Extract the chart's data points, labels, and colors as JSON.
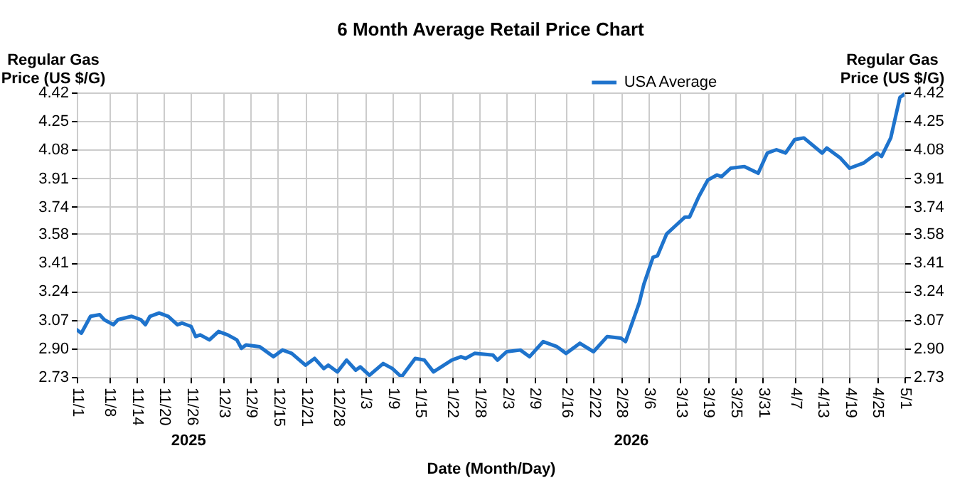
{
  "chart_data": {
    "type": "line",
    "title": "6 Month Average Retail Price Chart",
    "xlabel": "Date (Month/Day)",
    "ylabel": "Regular Gas Price (US $/G)",
    "y2label": "Regular Gas Price (US $/G)",
    "annotations": [
      "2025",
      "2026"
    ],
    "x": [
      "2025-11-01",
      "2025-11-02",
      "2025-11-04",
      "2025-11-06",
      "2025-11-07",
      "2025-11-09",
      "2025-11-10",
      "2025-11-13",
      "2025-11-15",
      "2025-11-16",
      "2025-11-17",
      "2025-11-19",
      "2025-11-21",
      "2025-11-23",
      "2025-11-24",
      "2025-11-26",
      "2025-11-27",
      "2025-11-28",
      "2025-11-30",
      "2025-12-02",
      "2025-12-04",
      "2025-12-06",
      "2025-12-07",
      "2025-12-08",
      "2025-12-11",
      "2025-12-12",
      "2025-12-14",
      "2025-12-16",
      "2025-12-18",
      "2025-12-21",
      "2025-12-23",
      "2025-12-25",
      "2025-12-26",
      "2025-12-28",
      "2025-12-30",
      "2026-01-01",
      "2026-01-02",
      "2026-01-04",
      "2026-01-07",
      "2026-01-09",
      "2026-01-11",
      "2026-01-14",
      "2026-01-16",
      "2026-01-18",
      "2026-01-22",
      "2026-01-24",
      "2026-01-25",
      "2026-01-27",
      "2026-01-31",
      "2026-02-01",
      "2026-02-03",
      "2026-02-06",
      "2026-02-08",
      "2026-02-11",
      "2026-02-14",
      "2026-02-16",
      "2026-02-19",
      "2026-02-22",
      "2026-02-25",
      "2026-02-28",
      "2026-03-01",
      "2026-03-04",
      "2026-03-05",
      "2026-03-07",
      "2026-03-08",
      "2026-03-10",
      "2026-03-12",
      "2026-03-14",
      "2026-03-15",
      "2026-03-17",
      "2026-03-19",
      "2026-03-21",
      "2026-03-22",
      "2026-03-24",
      "2026-03-27",
      "2026-03-30",
      "2026-04-01",
      "2026-04-03",
      "2026-04-05",
      "2026-04-07",
      "2026-04-09",
      "2026-04-13",
      "2026-04-14",
      "2026-04-17",
      "2026-04-19",
      "2026-04-22",
      "2026-04-25",
      "2026-04-26",
      "2026-04-28",
      "2026-04-29",
      "2026-04-30",
      "2026-05-01"
    ],
    "series": [
      {
        "name": "USA Average",
        "color": "#1e73cc",
        "values": [
          3.01,
          2.99,
          3.09,
          3.1,
          3.07,
          3.04,
          3.07,
          3.09,
          3.07,
          3.04,
          3.09,
          3.11,
          3.09,
          3.04,
          3.05,
          3.03,
          2.97,
          2.98,
          2.95,
          3.0,
          2.98,
          2.95,
          2.9,
          2.92,
          2.91,
          2.89,
          2.85,
          2.89,
          2.87,
          2.8,
          2.84,
          2.78,
          2.8,
          2.76,
          2.83,
          2.77,
          2.79,
          2.74,
          2.81,
          2.78,
          2.73,
          2.84,
          2.83,
          2.76,
          2.83,
          2.85,
          2.84,
          2.87,
          2.86,
          2.83,
          2.88,
          2.89,
          2.85,
          2.94,
          2.91,
          2.87,
          2.93,
          2.88,
          2.97,
          2.96,
          2.94,
          3.17,
          3.28,
          3.44,
          3.45,
          3.58,
          3.63,
          3.68,
          3.68,
          3.8,
          3.9,
          3.93,
          3.92,
          3.97,
          3.98,
          3.94,
          4.06,
          4.08,
          4.06,
          4.14,
          4.15,
          4.06,
          4.09,
          4.03,
          3.97,
          4.0,
          4.06,
          4.04,
          4.15,
          4.27,
          4.39,
          4.41
        ]
      }
    ],
    "xlim": [
      "2025-11-01",
      "2026-05-01"
    ],
    "xticks": [
      {
        "value": "2025-11-01",
        "label": "11/1"
      },
      {
        "value": "2025-11-08",
        "label": "11/8"
      },
      {
        "value": "2025-11-14",
        "label": "11/14"
      },
      {
        "value": "2025-11-20",
        "label": "11/20"
      },
      {
        "value": "2025-11-26",
        "label": "11/26"
      },
      {
        "value": "2025-12-03",
        "label": "12/3"
      },
      {
        "value": "2025-12-09",
        "label": "12/9"
      },
      {
        "value": "2025-12-15",
        "label": "12/15"
      },
      {
        "value": "2025-12-21",
        "label": "12/21"
      },
      {
        "value": "2025-12-28",
        "label": "12/28"
      },
      {
        "value": "2026-01-03",
        "label": "1/3"
      },
      {
        "value": "2026-01-09",
        "label": "1/9"
      },
      {
        "value": "2026-01-15",
        "label": "1/15"
      },
      {
        "value": "2026-01-22",
        "label": "1/22"
      },
      {
        "value": "2026-01-28",
        "label": "1/28"
      },
      {
        "value": "2026-02-03",
        "label": "2/3"
      },
      {
        "value": "2026-02-09",
        "label": "2/9"
      },
      {
        "value": "2026-02-16",
        "label": "2/16"
      },
      {
        "value": "2026-02-22",
        "label": "2/22"
      },
      {
        "value": "2026-02-28",
        "label": "2/28"
      },
      {
        "value": "2026-03-06",
        "label": "3/6"
      },
      {
        "value": "2026-03-13",
        "label": "3/13"
      },
      {
        "value": "2026-03-19",
        "label": "3/19"
      },
      {
        "value": "2026-03-25",
        "label": "3/25"
      },
      {
        "value": "2026-03-31",
        "label": "3/31"
      },
      {
        "value": "2026-04-07",
        "label": "4/7"
      },
      {
        "value": "2026-04-13",
        "label": "4/13"
      },
      {
        "value": "2026-04-19",
        "label": "4/19"
      },
      {
        "value": "2026-04-25",
        "label": "4/25"
      },
      {
        "value": "2026-05-01",
        "label": "5/1"
      }
    ],
    "ylim": [
      2.73,
      4.42
    ],
    "yticks": [
      2.73,
      {
        "value": 2.9,
        "label": "2.90"
      },
      3.07,
      3.24,
      3.41,
      3.58,
      3.74,
      3.91,
      4.08,
      4.25,
      4.42
    ],
    "y2lim": [
      2.73,
      4.42
    ],
    "y2ticks": [
      2.73,
      {
        "value": 2.9,
        "label": "2.90"
      },
      3.07,
      3.24,
      3.41,
      3.58,
      3.74,
      3.91,
      4.08,
      4.25,
      4.42
    ],
    "grid": true,
    "legend": "top"
  }
}
